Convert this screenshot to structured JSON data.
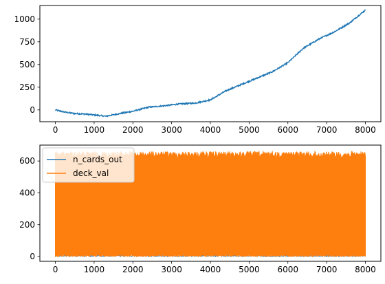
{
  "chart_data": [
    {
      "type": "line",
      "xlim": [
        -400,
        8400
      ],
      "ylim": [
        -130,
        1150
      ],
      "x_ticks": [
        0,
        1000,
        2000,
        3000,
        4000,
        5000,
        6000,
        7000,
        8000
      ],
      "y_ticks": [
        0,
        250,
        500,
        750,
        1000
      ],
      "grid": false,
      "legend": null,
      "series": [
        {
          "color": "#1f77b4",
          "x": [
            0,
            250,
            500,
            750,
            1000,
            1300,
            1600,
            2000,
            2400,
            2800,
            3200,
            3600,
            4000,
            4400,
            4800,
            5200,
            5600,
            6000,
            6400,
            6800,
            7200,
            7600,
            8000
          ],
          "y": [
            0,
            -25,
            -40,
            -45,
            -55,
            -70,
            -45,
            -15,
            30,
            45,
            65,
            75,
            110,
            210,
            280,
            350,
            420,
            520,
            680,
            780,
            860,
            960,
            1100
          ]
        }
      ]
    },
    {
      "type": "line",
      "xlim": [
        -400,
        8400
      ],
      "ylim": [
        -30,
        700
      ],
      "x_ticks": [
        0,
        1000,
        2000,
        3000,
        4000,
        5000,
        6000,
        7000,
        8000
      ],
      "y_ticks": [
        0,
        200,
        400,
        600
      ],
      "grid": false,
      "legend": "upper left",
      "series": [
        {
          "name": "n_cards_out",
          "color": "#1f77b4",
          "x_range": [
            0,
            8000
          ],
          "y_range": [
            0,
            20
          ]
        },
        {
          "name": "deck_val",
          "color": "#ff7f0e",
          "x_range": [
            0,
            8000
          ],
          "y_range": [
            0,
            660
          ]
        }
      ]
    }
  ]
}
